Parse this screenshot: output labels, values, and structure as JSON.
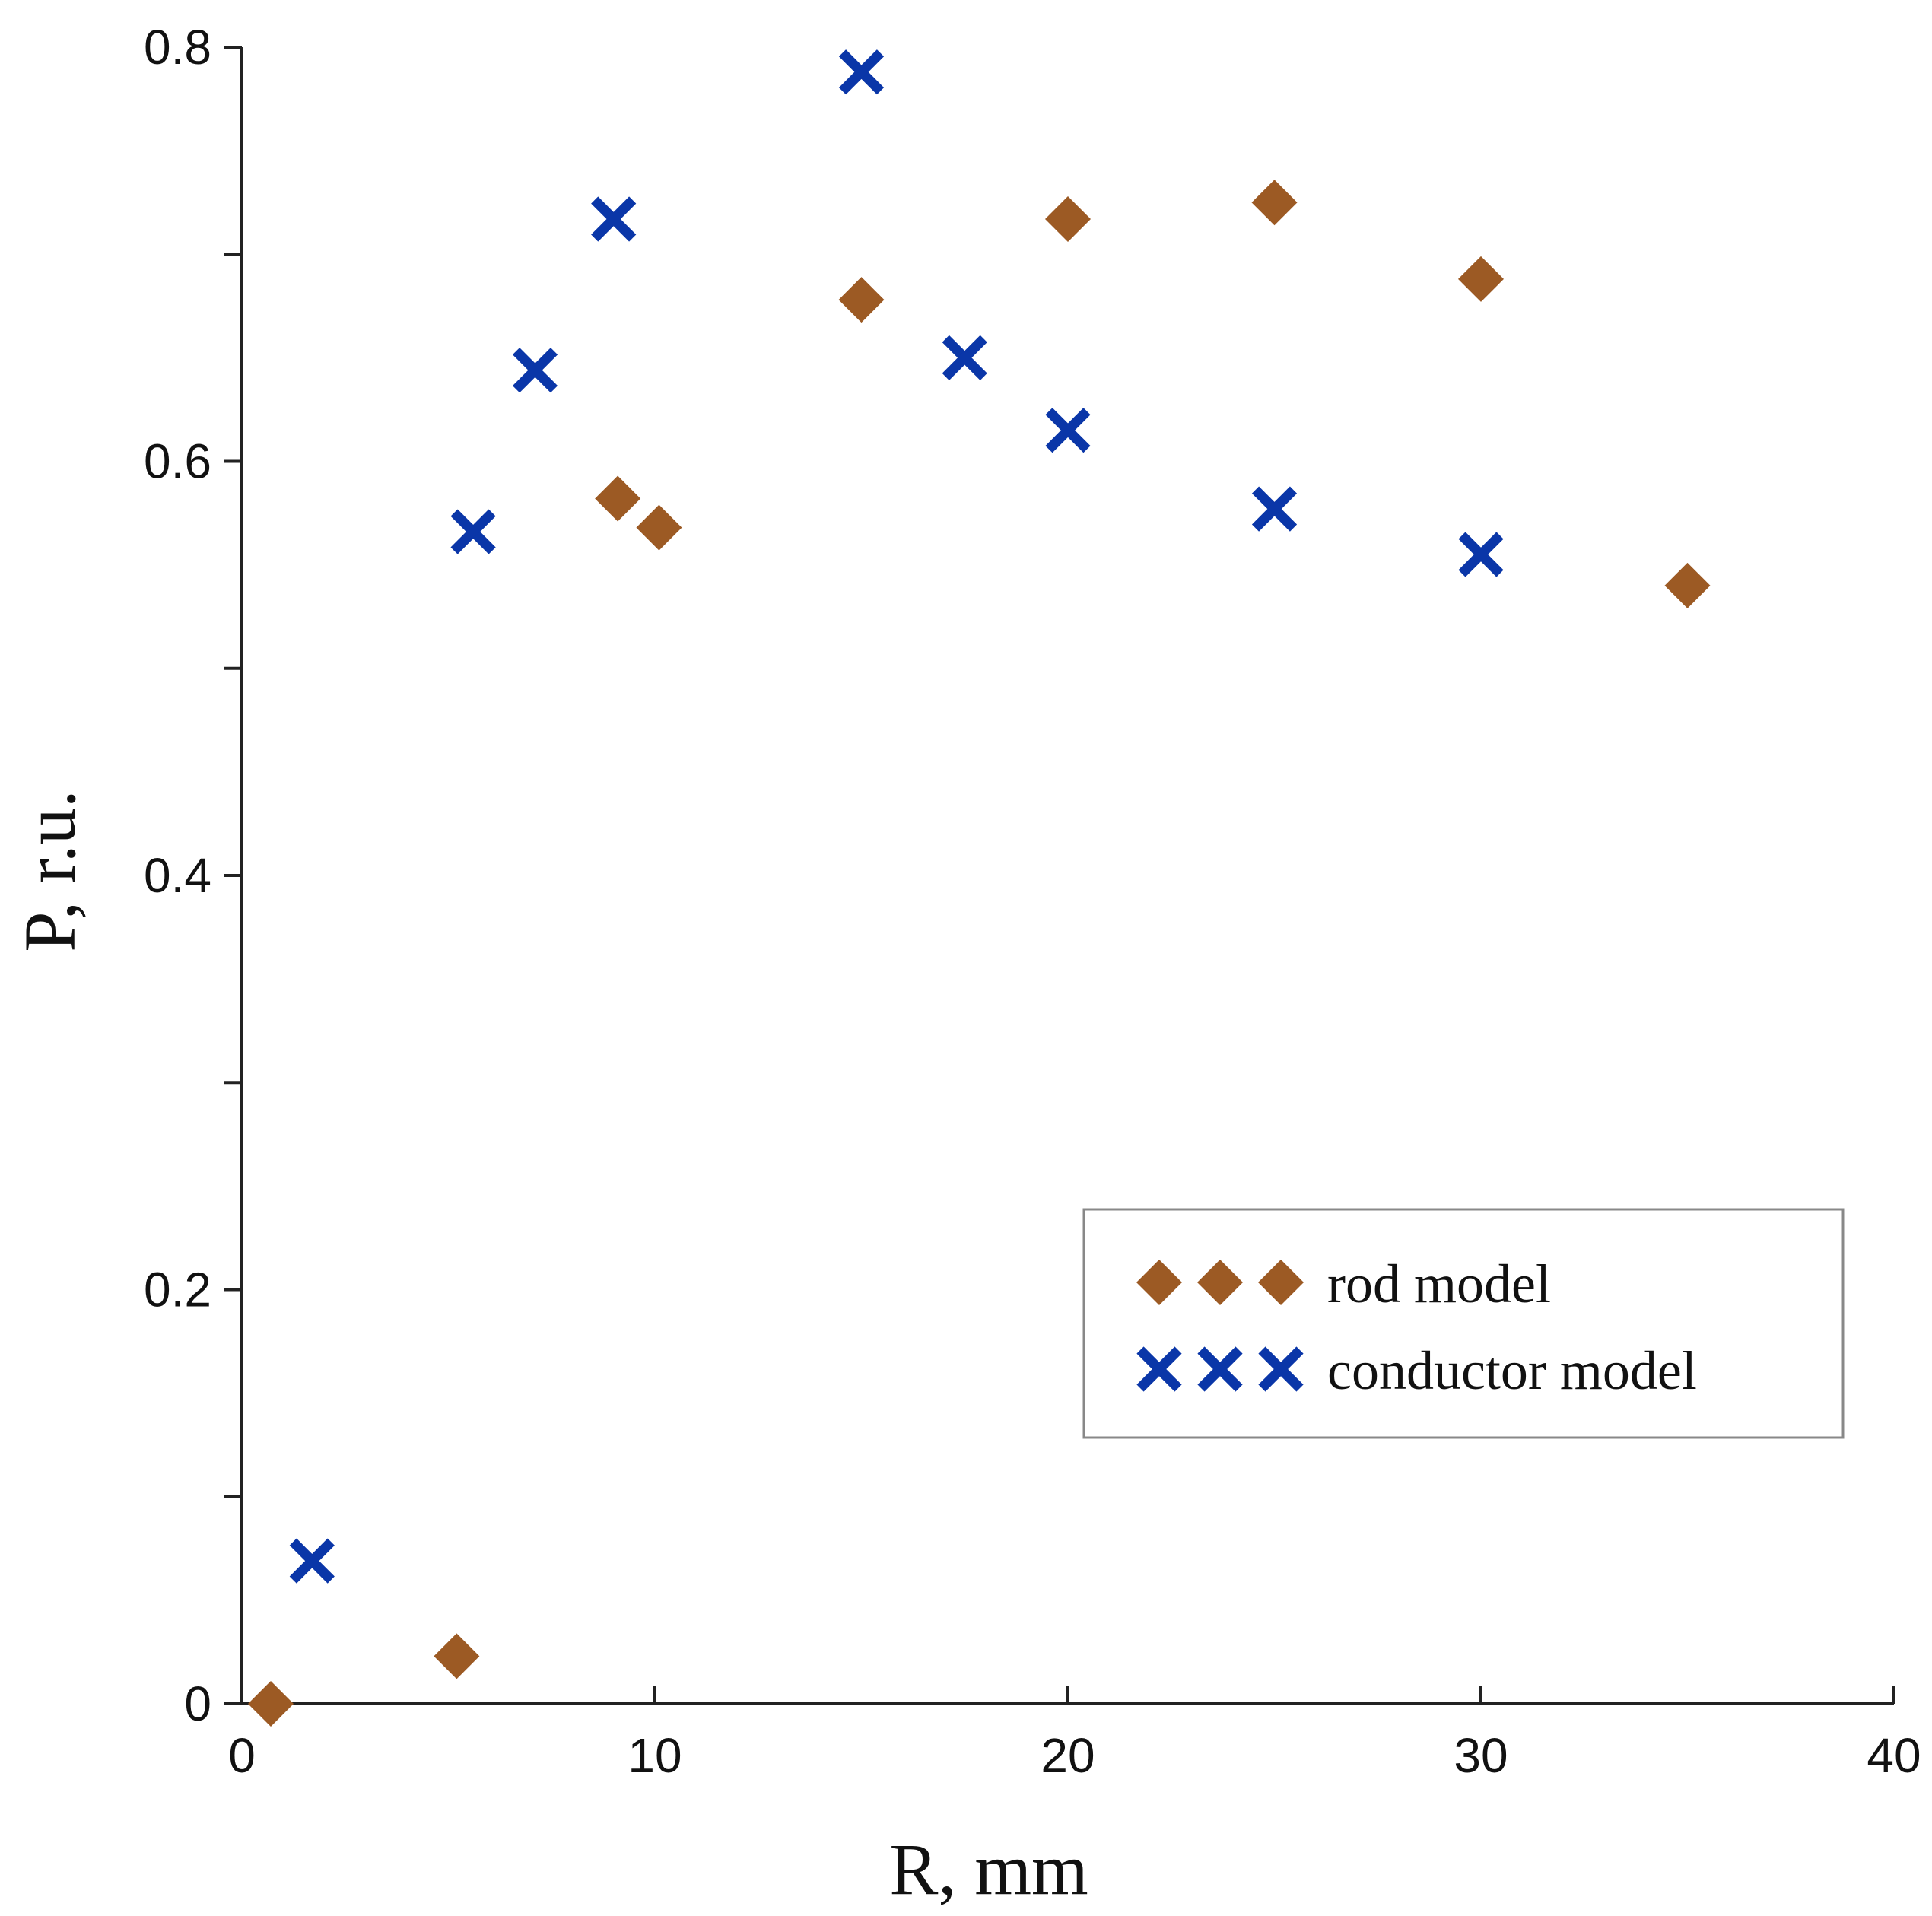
{
  "chart_data": {
    "type": "scatter",
    "title": "",
    "xlabel": "R, mm",
    "ylabel": "P, r.u.",
    "xlim": [
      0,
      40
    ],
    "ylim": [
      0,
      0.8
    ],
    "xticks": [
      0,
      10,
      20,
      30,
      40
    ],
    "yticks": [
      0,
      0.2,
      0.4,
      0.6,
      0.8
    ],
    "xtick_labels": [
      "0",
      "10",
      "20",
      "30",
      "40"
    ],
    "ytick_labels": [
      "0",
      "0.2",
      "0.4",
      "0.6",
      "0.8"
    ],
    "y_minor_ticks": [
      0.1,
      0.3,
      0.5,
      0.7
    ],
    "grid": false,
    "legend_position": "lower-right",
    "series": [
      {
        "name": "rod model",
        "marker": "diamond",
        "color": "#9C5A24",
        "x": [
          0.7,
          5.2,
          9.1,
          10.1,
          15.0,
          20.0,
          25.0,
          30.0,
          35.0
        ],
        "y": [
          0.0,
          0.023,
          0.582,
          0.568,
          0.678,
          0.717,
          0.725,
          0.688,
          0.54
        ]
      },
      {
        "name": "conductor model",
        "marker": "x",
        "color": "#0A36A8",
        "x": [
          1.7,
          5.6,
          7.1,
          9.0,
          15.0,
          17.5,
          20.0,
          25.0,
          30.0
        ],
        "y": [
          0.069,
          0.566,
          0.644,
          0.717,
          0.788,
          0.65,
          0.615,
          0.577,
          0.555
        ]
      }
    ]
  }
}
